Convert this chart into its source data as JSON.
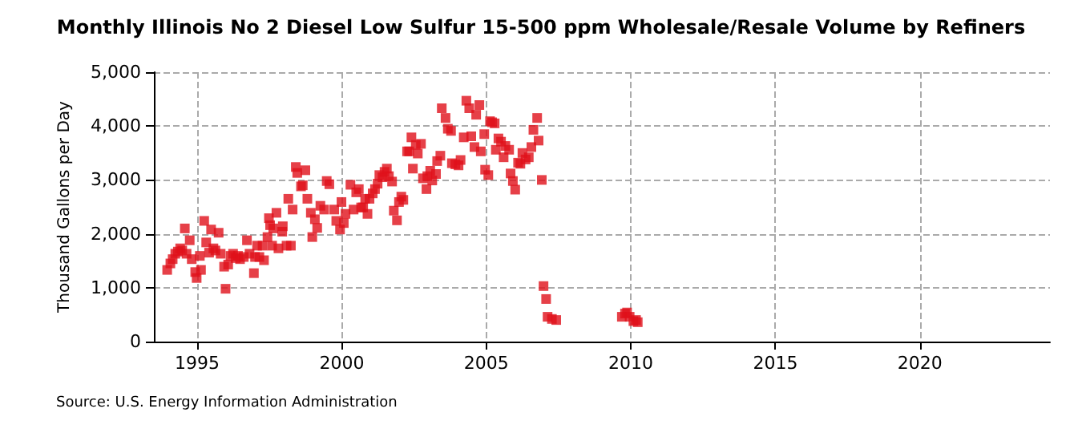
{
  "chart_data": {
    "type": "scatter",
    "title": "Monthly Illinois No 2 Diesel Low Sulfur 15-500 ppm Wholesale/Resale Volume by Refiners",
    "ylabel": "Thousand Gallons per Day",
    "annotations": [
      "Source: U.S. Energy Information Administration"
    ],
    "x": [
      1993.96,
      1994.07,
      1994.15,
      1994.24,
      1994.33,
      1994.41,
      1994.48,
      1994.57,
      1994.63,
      1994.74,
      1994.81,
      1994.93,
      1994.98,
      1995.09,
      1995.13,
      1995.24,
      1995.31,
      1995.41,
      1995.48,
      1995.56,
      1995.63,
      1995.74,
      1995.81,
      1995.93,
      1995.98,
      1996.07,
      1996.15,
      1996.24,
      1996.33,
      1996.41,
      1996.48,
      1996.61,
      1996.72,
      1996.81,
      1996.96,
      1997.0,
      1997.07,
      1997.15,
      1997.26,
      1997.31,
      1997.43,
      1997.48,
      1997.52,
      1997.59,
      1997.63,
      1997.74,
      1997.81,
      1997.94,
      1997.96,
      1998.09,
      1998.15,
      1998.24,
      1998.3,
      1998.41,
      1998.46,
      1998.59,
      1998.65,
      1998.74,
      1998.81,
      1998.93,
      1998.98,
      1999.07,
      1999.15,
      1999.26,
      1999.39,
      1999.48,
      1999.57,
      1999.74,
      1999.81,
      1999.94,
      1999.99,
      2000.07,
      2000.13,
      2000.3,
      2000.41,
      2000.5,
      2000.59,
      2000.67,
      2000.74,
      2000.81,
      2000.89,
      2000.96,
      2001.07,
      2001.15,
      2001.24,
      2001.3,
      2001.41,
      2001.48,
      2001.56,
      2001.63,
      2001.74,
      2001.8,
      2001.91,
      2001.98,
      2002.06,
      2002.13,
      2002.26,
      2002.33,
      2002.41,
      2002.46,
      2002.56,
      2002.63,
      2002.74,
      2002.81,
      2002.93,
      2002.96,
      2003.06,
      2003.13,
      2003.26,
      2003.3,
      2003.41,
      2003.46,
      2003.59,
      2003.67,
      2003.78,
      2003.81,
      2003.93,
      2004.04,
      2004.11,
      2004.22,
      2004.31,
      2004.41,
      2004.48,
      2004.59,
      2004.65,
      2004.76,
      2004.81,
      2004.93,
      2004.96,
      2005.07,
      2005.13,
      2005.2,
      2005.29,
      2005.33,
      2005.42,
      2005.51,
      2005.6,
      2005.66,
      2005.79,
      2005.84,
      2005.92,
      2006.0,
      2006.1,
      2006.18,
      2006.25,
      2006.36,
      2006.47,
      2006.56,
      2006.63,
      2006.76,
      2006.81,
      2006.92,
      2006.98,
      2007.07,
      2007.12,
      2007.27,
      2007.42,
      2009.69,
      2009.8,
      2009.87,
      2009.96,
      2010.09,
      2010.18,
      2010.24
    ],
    "values": [
      1330,
      1450,
      1530,
      1630,
      1670,
      1730,
      1690,
      2100,
      1630,
      1880,
      1530,
      1290,
      1180,
      1590,
      1330,
      2240,
      1840,
      1650,
      2080,
      1730,
      1690,
      2020,
      1630,
      1390,
      980,
      1430,
      1590,
      1630,
      1550,
      1590,
      1530,
      1570,
      1880,
      1630,
      1270,
      1570,
      1780,
      1570,
      1780,
      1510,
      1940,
      2290,
      2160,
      1780,
      2100,
      2390,
      1730,
      2040,
      2140,
      1780,
      2650,
      1780,
      2450,
      3240,
      3130,
      2880,
      2900,
      3180,
      2650,
      2390,
      1940,
      2270,
      2110,
      2520,
      2450,
      2980,
      2920,
      2450,
      2240,
      2080,
      2590,
      2200,
      2370,
      2910,
      2450,
      2770,
      2830,
      2490,
      2490,
      2650,
      2370,
      2650,
      2750,
      2830,
      2930,
      3090,
      3050,
      3150,
      3210,
      3070,
      2970,
      2430,
      2250,
      2590,
      2690,
      2630,
      3530,
      3530,
      3790,
      3210,
      3650,
      3490,
      3670,
      3030,
      2830,
      3070,
      3170,
      2990,
      3110,
      3350,
      3450,
      4330,
      4150,
      3950,
      3910,
      3310,
      3290,
      3270,
      3370,
      3790,
      4470,
      4330,
      3810,
      3610,
      4210,
      4390,
      3530,
      3850,
      3190,
      3090,
      4090,
      4070,
      4050,
      3560,
      3770,
      3710,
      3420,
      3630,
      3560,
      3120,
      2980,
      2820,
      3320,
      3300,
      3500,
      3380,
      3420,
      3610,
      3930,
      4150,
      3730,
      3000,
      1030,
      790,
      460,
      420,
      400,
      460,
      520,
      540,
      460,
      380,
      400,
      360
    ],
    "color": "#e0101a",
    "marker": "square",
    "grid": true,
    "xlim": [
      1993.5,
      2024.5
    ],
    "xticks": [
      1995,
      2000,
      2005,
      2010,
      2015,
      2020
    ],
    "ylim": [
      0,
      5000
    ],
    "yticks": [
      0,
      {
        "value": 1000,
        "label": "1,000"
      },
      {
        "value": 2000,
        "label": "2,000"
      },
      {
        "value": 3000,
        "label": "3,000"
      },
      {
        "value": 4000,
        "label": "4,000"
      },
      {
        "value": 5000,
        "label": "5,000"
      }
    ]
  }
}
